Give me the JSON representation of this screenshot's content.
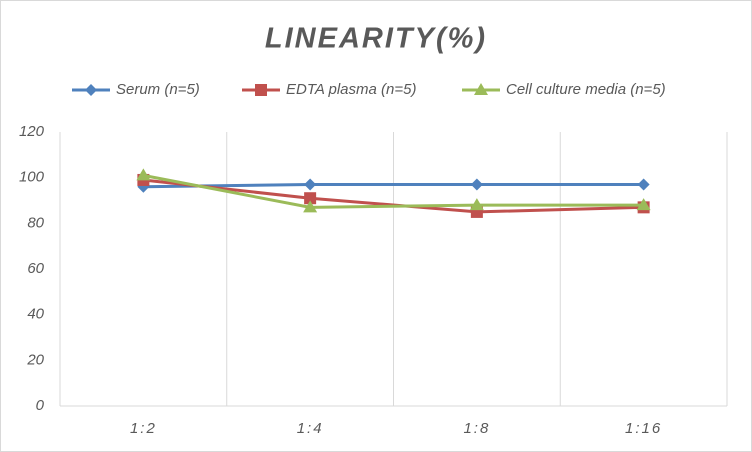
{
  "chart_data": {
    "type": "line",
    "title": "LINEARITY(%)",
    "categories": [
      "1:2",
      "1:4",
      "1:8",
      "1:16"
    ],
    "series": [
      {
        "name": "Serum (n=5)",
        "color": "#4f81bd",
        "marker": "diamond",
        "values": [
          96,
          97,
          97,
          97
        ]
      },
      {
        "name": "EDTA plasma (n=5)",
        "color": "#c0504d",
        "marker": "square",
        "values": [
          99,
          91,
          85,
          87
        ]
      },
      {
        "name": "Cell culture media (n=5)",
        "color": "#9bbb59",
        "marker": "triangle",
        "values": [
          101,
          87,
          88,
          88
        ]
      }
    ],
    "ylim": [
      0,
      120
    ],
    "yticks": [
      0,
      20,
      40,
      60,
      80,
      100,
      120
    ],
    "legend": "top"
  }
}
